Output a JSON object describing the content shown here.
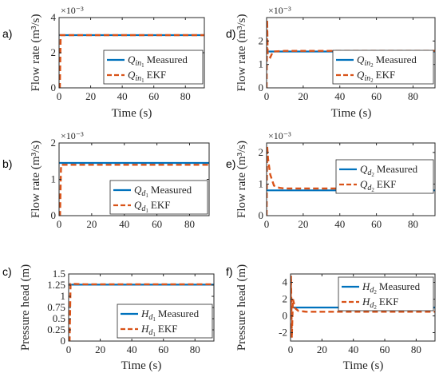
{
  "colors": {
    "measured": "#0072BD",
    "ekf": "#D95319",
    "axis": "#262626",
    "legend_border": "#262626"
  },
  "chart_data": [
    {
      "panel": "a)",
      "type": "line",
      "xlabel": "Time (s)",
      "ylabel": "Flow rate (m³/s)",
      "yexp": "×10⁻³",
      "xlim": [
        0,
        92
      ],
      "ylim": [
        0,
        4
      ],
      "xticks": [
        0,
        20,
        40,
        60,
        80
      ],
      "yticks": [
        0,
        2,
        4
      ],
      "ytick_labels": [
        "0",
        "2",
        "4"
      ],
      "legend_loc": "lower-right",
      "series": [
        {
          "name": "Q_{in1} Measured",
          "sym": "Q",
          "sub": "in",
          "subsub": "1",
          "suffix": "Measured",
          "role": "measured",
          "x": [
            0,
            0.5,
            10,
            20,
            30,
            40,
            50,
            60,
            70,
            80,
            92
          ],
          "y": [
            3.0,
            3.0,
            3.0,
            3.0,
            3.0,
            3.0,
            3.0,
            3.0,
            3.0,
            3.0,
            3.0
          ]
        },
        {
          "name": "Q_{in1} EKF",
          "sym": "Q",
          "sub": "in",
          "subsub": "1",
          "suffix": "EKF",
          "role": "ekf",
          "x": [
            0,
            0.5,
            1,
            10,
            20,
            30,
            40,
            50,
            60,
            70,
            80,
            92
          ],
          "y": [
            0,
            0,
            3.0,
            3.0,
            3.0,
            3.0,
            3.0,
            3.0,
            3.0,
            3.0,
            3.0,
            3.0
          ]
        }
      ]
    },
    {
      "panel": "d)",
      "type": "line",
      "xlabel": "Time (s)",
      "ylabel": "Flow rate (m³/s)",
      "yexp": "×10⁻³",
      "xlim": [
        0,
        92
      ],
      "ylim": [
        0,
        3
      ],
      "xticks": [
        0,
        20,
        40,
        60,
        80
      ],
      "yticks": [
        0,
        1,
        2
      ],
      "ytick_labels": [
        "0",
        "1",
        "2"
      ],
      "legend_loc": "lower-right",
      "series": [
        {
          "name": "Q_{in2} Measured",
          "sym": "Q",
          "sub": "in",
          "subsub": "2",
          "suffix": "Measured",
          "role": "measured",
          "x": [
            0,
            1,
            10,
            20,
            30,
            40,
            50,
            60,
            70,
            80,
            92
          ],
          "y": [
            1.55,
            1.55,
            1.55,
            1.55,
            1.55,
            1.55,
            1.55,
            1.55,
            1.55,
            1.55,
            1.55
          ]
        },
        {
          "name": "Q_{in2} EKF",
          "sym": "Q",
          "sub": "in",
          "subsub": "2",
          "suffix": "EKF",
          "role": "ekf",
          "x": [
            0,
            0.3,
            0.6,
            2,
            3.5,
            10,
            20,
            30,
            40,
            50,
            60,
            70,
            80,
            92
          ],
          "y": [
            0,
            2.9,
            1.4,
            1.3,
            1.55,
            1.58,
            1.58,
            1.58,
            1.58,
            1.58,
            1.58,
            1.58,
            1.58,
            1.58
          ]
        }
      ]
    },
    {
      "panel": "b)",
      "type": "line",
      "xlabel": "",
      "ylabel": "Flow rate (m³/s)",
      "yexp": "×10⁻³",
      "xlim": [
        0,
        92
      ],
      "ylim": [
        0,
        2
      ],
      "xticks": [
        0,
        20,
        40,
        60,
        80
      ],
      "yticks": [
        0,
        1,
        2
      ],
      "ytick_labels": [
        "0",
        "1",
        "2"
      ],
      "legend_loc": "lower-right",
      "series": [
        {
          "name": "Q_{d1} Measured",
          "sym": "Q",
          "sub": "d",
          "subsub": "1",
          "suffix": "Measured",
          "role": "measured",
          "x": [
            0,
            1,
            10,
            20,
            30,
            40,
            50,
            60,
            70,
            80,
            92
          ],
          "y": [
            1.45,
            1.45,
            1.45,
            1.45,
            1.45,
            1.45,
            1.45,
            1.45,
            1.45,
            1.45,
            1.45
          ]
        },
        {
          "name": "Q_{d1} EKF",
          "sym": "Q",
          "sub": "d",
          "subsub": "1",
          "suffix": "EKF",
          "role": "ekf",
          "x": [
            0,
            0.6,
            1.2,
            10,
            20,
            30,
            40,
            50,
            60,
            70,
            80,
            92
          ],
          "y": [
            0,
            0,
            1.4,
            1.4,
            1.4,
            1.4,
            1.4,
            1.4,
            1.4,
            1.4,
            1.4,
            1.4
          ]
        }
      ]
    },
    {
      "panel": "e)",
      "type": "line",
      "xlabel": "",
      "ylabel": "Flow rate (m³/s)",
      "yexp": "×10⁻³",
      "xlim": [
        0,
        92
      ],
      "ylim": [
        0,
        2.3
      ],
      "xticks": [
        0,
        20,
        40,
        60,
        80
      ],
      "yticks": [
        0,
        1,
        2
      ],
      "ytick_labels": [
        "0",
        "1",
        "2"
      ],
      "legend_loc": "right",
      "series": [
        {
          "name": "Q_{d2} Measured",
          "sym": "Q",
          "sub": "d",
          "subsub": "2",
          "suffix": "Measured",
          "role": "measured",
          "x": [
            0,
            1,
            10,
            20,
            30,
            40,
            50,
            60,
            70,
            80,
            92
          ],
          "y": [
            0.8,
            0.8,
            0.8,
            0.8,
            0.8,
            0.8,
            0.8,
            0.8,
            0.8,
            0.8,
            0.8
          ]
        },
        {
          "name": "Q_{d2} EKF",
          "sym": "Q",
          "sub": "d",
          "subsub": "2",
          "suffix": "EKF",
          "role": "ekf",
          "x": [
            0,
            0.3,
            0.8,
            2,
            4,
            7,
            10,
            20,
            30,
            40,
            50,
            60,
            70,
            80,
            92
          ],
          "y": [
            0,
            2.2,
            1.8,
            1.3,
            0.95,
            0.88,
            0.86,
            0.86,
            0.86,
            0.86,
            0.86,
            0.86,
            0.86,
            0.86,
            0.86
          ]
        }
      ]
    },
    {
      "panel": "c)",
      "type": "line",
      "xlabel": "Time (s)",
      "ylabel": "Pressure head (m)",
      "yexp": "",
      "xlim": [
        0,
        92
      ],
      "ylim": [
        0,
        1.5
      ],
      "xticks": [
        0,
        20,
        40,
        60,
        80
      ],
      "yticks": [
        0,
        0.25,
        0.5,
        0.75,
        1,
        1.25,
        1.5
      ],
      "ytick_labels": [
        "0",
        "0.25",
        "0.5",
        "0.75",
        "1",
        "1.25",
        "1.5"
      ],
      "legend_loc": "lower-right",
      "series": [
        {
          "name": "H_{d1} Measured",
          "sym": "H",
          "sub": "d",
          "subsub": "1",
          "suffix": "Measured",
          "role": "measured",
          "x": [
            0,
            1,
            10,
            20,
            30,
            40,
            50,
            60,
            70,
            80,
            92
          ],
          "y": [
            1.26,
            1.26,
            1.26,
            1.26,
            1.26,
            1.26,
            1.26,
            1.26,
            1.26,
            1.26,
            1.26
          ]
        },
        {
          "name": "H_{d1} EKF",
          "sym": "H",
          "sub": "d",
          "subsub": "1",
          "suffix": "EKF",
          "role": "ekf",
          "x": [
            0,
            0.6,
            1.2,
            10,
            20,
            30,
            40,
            50,
            60,
            70,
            80,
            92
          ],
          "y": [
            0,
            0,
            1.28,
            1.27,
            1.27,
            1.27,
            1.27,
            1.27,
            1.27,
            1.27,
            1.27,
            1.27
          ]
        }
      ]
    },
    {
      "panel": "f)",
      "type": "line",
      "xlabel": "Time (s)",
      "ylabel": "Pressure head (m)",
      "yexp": "",
      "xlim": [
        0,
        92
      ],
      "ylim": [
        -3,
        5
      ],
      "xticks": [
        0,
        20,
        40,
        60,
        80
      ],
      "yticks": [
        -2,
        0,
        2,
        4
      ],
      "ytick_labels": [
        "-2",
        "0",
        "2",
        "4"
      ],
      "legend_loc": "top-right",
      "series": [
        {
          "name": "H_{d2} Measured",
          "sym": "H",
          "sub": "d",
          "subsub": "2",
          "suffix": "Measured",
          "role": "measured",
          "x": [
            0,
            1,
            10,
            20,
            30,
            40,
            50,
            60,
            70,
            80,
            92
          ],
          "y": [
            1.0,
            1.0,
            1.0,
            1.0,
            1.0,
            1.0,
            1.0,
            1.0,
            1.0,
            1.0,
            1.0
          ]
        },
        {
          "name": "H_{d2} EKF",
          "sym": "H",
          "sub": "d",
          "subsub": "2",
          "suffix": "EKF",
          "role": "ekf",
          "x": [
            0,
            0.3,
            0.8,
            1.5,
            3,
            5,
            10,
            20,
            30,
            40,
            50,
            60,
            70,
            80,
            92
          ],
          "y": [
            0,
            4.8,
            -2.6,
            2.0,
            0.9,
            0.6,
            0.5,
            0.5,
            0.5,
            0.5,
            0.5,
            0.5,
            0.5,
            0.5,
            0.5
          ]
        }
      ]
    }
  ]
}
